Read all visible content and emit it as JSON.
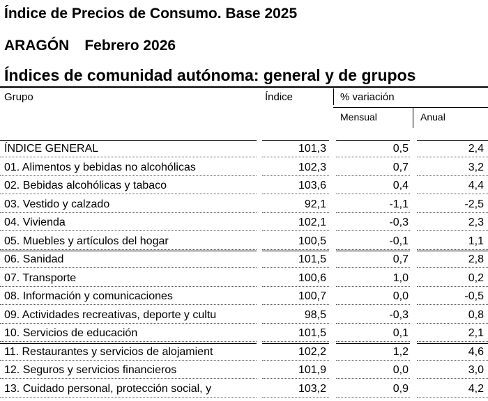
{
  "header": {
    "title": "Índice de Precios de Consumo. Base 2025",
    "region": "ARAGÓN",
    "period": "Febrero 2026",
    "subtitle": "Índices de comunidad autónoma: general y de grupos"
  },
  "columns": {
    "group": "Grupo",
    "index": "Índice",
    "variation": "% variación",
    "monthly": "Mensual",
    "annual": "Anual"
  },
  "rows": [
    {
      "name": "ÍNDICE GENERAL",
      "index": "101,3",
      "monthly": "0,5",
      "annual": "2,4"
    },
    {
      "name": "01. Alimentos y bebidas no alcohólicas",
      "index": "102,3",
      "monthly": "0,7",
      "annual": "3,2"
    },
    {
      "name": "02. Bebidas alcohólicas y tabaco",
      "index": "103,6",
      "monthly": "0,4",
      "annual": "4,4"
    },
    {
      "name": "03. Vestido y calzado",
      "index": "92,1",
      "monthly": "-1,1",
      "annual": "-2,5"
    },
    {
      "name": "04. Vivienda",
      "index": "102,1",
      "monthly": "-0,3",
      "annual": "2,3"
    },
    {
      "name": "05. Muebles y artículos del hogar",
      "index": "100,5",
      "monthly": "-0,1",
      "annual": "1,1"
    },
    {
      "name": "06. Sanidad",
      "index": "101,5",
      "monthly": "0,7",
      "annual": "2,8"
    },
    {
      "name": "07. Transporte",
      "index": "100,6",
      "monthly": "1,0",
      "annual": "0,2"
    },
    {
      "name": "08. Información y comunicaciones",
      "index": "100,7",
      "monthly": "0,0",
      "annual": "-0,5"
    },
    {
      "name": "09. Actividades recreativas, deporte y cultu",
      "index": "98,5",
      "monthly": "-0,3",
      "annual": "0,8"
    },
    {
      "name": "10. Servicios de educación",
      "index": "101,5",
      "monthly": "0,1",
      "annual": "2,1"
    },
    {
      "name": "11. Restaurantes y servicios de alojamient",
      "index": "102,2",
      "monthly": "1,2",
      "annual": "4,6"
    },
    {
      "name": "12. Seguros y servicios financieros",
      "index": "101,9",
      "monthly": "0,0",
      "annual": "3,0"
    },
    {
      "name": "13. Cuidado personal, protección social, y",
      "index": "103,2",
      "monthly": "0,9",
      "annual": "4,2"
    }
  ]
}
